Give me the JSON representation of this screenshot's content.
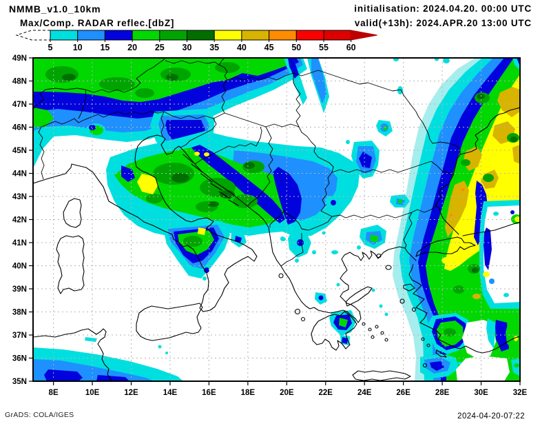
{
  "header": {
    "model": "NMMB_v1.0_10km",
    "product": "Max/Comp. RADAR reflec.[dbZ]",
    "initialisation": "initialisation: 2024.04.20. 00:00 UTC",
    "valid": "valid(+13h): 2024.APR.20 13:00 UTC"
  },
  "colorbar": {
    "levels": [
      "5",
      "10",
      "15",
      "20",
      "25",
      "30",
      "35",
      "40",
      "45",
      "50",
      "55",
      "60"
    ],
    "colors": [
      "#00dfdf",
      "#1e90ff",
      "#0202dd",
      "#00d800",
      "#00a400",
      "#006f00",
      "#ffff00",
      "#d8b400",
      "#ff8c00",
      "#fb0000",
      "#dd0000"
    ],
    "overflow_color": "#bb0000",
    "underflow_style": "dashed white arrow (< 5 dbZ)"
  },
  "map": {
    "lat_labels": [
      "49N",
      "48N",
      "47N",
      "46N",
      "45N",
      "44N",
      "43N",
      "42N",
      "41N",
      "40N",
      "39N",
      "38N",
      "37N",
      "36N",
      "35N"
    ],
    "lon_labels": [
      "8E",
      "10E",
      "12E",
      "14E",
      "16E",
      "18E",
      "20E",
      "22E",
      "24E",
      "26E",
      "28E",
      "30E",
      "32E"
    ]
  },
  "footer": {
    "generator": "GrADS: COLA/IGES",
    "created": "2024-04-20-07:22"
  },
  "chart_data": {
    "type": "heatmap",
    "title": "Max/Comp. RADAR reflec.[dbZ]",
    "model": "NMMB_v1.0_10km",
    "init_time": "2024.04.20. 00:00 UTC",
    "valid_time": "2024.APR.20 13:00 UTC",
    "lead_hours": 13,
    "units": "dbZ",
    "lon_range_deg_east": [
      7,
      32
    ],
    "lat_range_deg_north": [
      35,
      49
    ],
    "grid_spacing": {
      "lon_deg": 2,
      "lat_deg": 1
    },
    "levels": [
      5,
      10,
      15,
      20,
      25,
      30,
      35,
      40,
      45,
      50,
      55,
      60
    ],
    "palette": [
      "#00dfdf",
      "#1e90ff",
      "#0202dd",
      "#00d800",
      "#00a400",
      "#006f00",
      "#ffff00",
      "#d8b400",
      "#ff8c00",
      "#fb0000",
      "#dd0000"
    ],
    "overflow_color": "#bb0000",
    "features": [
      {
        "area": "Alps / Czechia / Austria band (7-17E, 46-49N)",
        "max_dbz": 35,
        "dominant_dbz": "20-35 with embedded 25-30 cores, blue 15-20 band on southern flank"
      },
      {
        "area": "N Italy / Croatia / Bosnia complex (11-19E, 42-45.5N)",
        "max_dbz": 40,
        "dominant_dbz": "20-35 green mass, yellow 35-40 core near 12.5E 43.8N"
      },
      {
        "area": "Serbia light fan (19.5-22.5E, 42.5-45.5N)",
        "max_dbz": 20,
        "dominant_dbz": "5-15"
      },
      {
        "area": "S Italy / Campania cell (14-17E, 40.5-42.5N)",
        "max_dbz": 40,
        "dominant_dbz": "20-30 with small 35-40 speck"
      },
      {
        "area": "Eastern arc: Moldova / Black Sea / W Turkey (25-32E, 35-49N)",
        "max_dbz": 50,
        "dominant_dbz": "broad 35-45 yellow/ochre core flanked by 5-30 banded arc, tiny 45-50 specks"
      },
      {
        "area": "N Africa coast (7-11.5E, 35-36.5N)",
        "max_dbz": 25,
        "dominant_dbz": "5-20 band"
      },
      {
        "area": "Peloponnese cell (22-23E, 37.5-38.5N)",
        "max_dbz": 25
      },
      {
        "area": "Scattered cells Romania / Bulgaria / Greece",
        "max_dbz": 25
      }
    ]
  }
}
